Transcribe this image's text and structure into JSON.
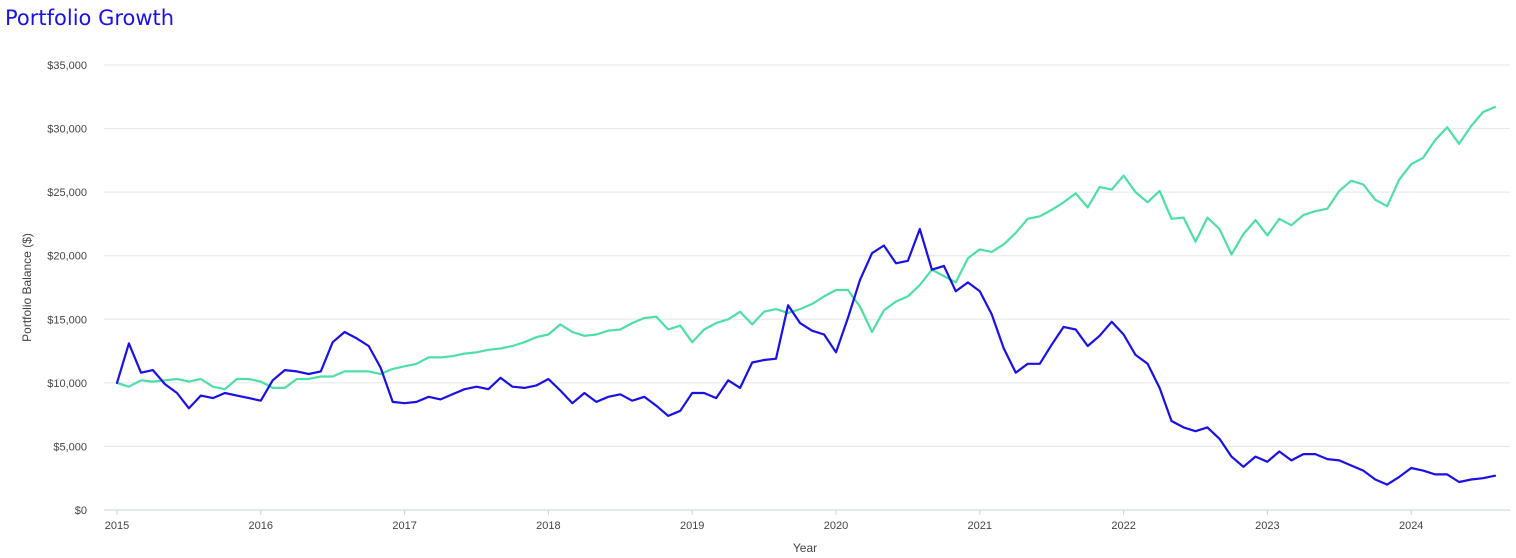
{
  "title": "Portfolio Growth",
  "chart_data": {
    "type": "line",
    "title": "Portfolio Growth",
    "xlabel": "Year",
    "ylabel": "Portfolio Balance ($)",
    "x_ticks": [
      "2015",
      "2016",
      "2017",
      "2018",
      "2019",
      "2020",
      "2021",
      "2022",
      "2023",
      "2024"
    ],
    "y_ticks": [
      "$0",
      "$5,000",
      "$10,000",
      "$15,000",
      "$20,000",
      "$25,000",
      "$30,000",
      "$35,000"
    ],
    "ylim": [
      0,
      35000
    ],
    "xlim": [
      2015.0,
      2024.67
    ],
    "grid": true,
    "legend": "none",
    "series": [
      {
        "color": "#1a10e8",
        "x": [
          2015.0,
          2015.083,
          2015.167,
          2015.25,
          2015.333,
          2015.417,
          2015.5,
          2015.583,
          2015.667,
          2015.75,
          2015.833,
          2015.917,
          2016.0,
          2016.083,
          2016.167,
          2016.25,
          2016.333,
          2016.417,
          2016.5,
          2016.583,
          2016.667,
          2016.75,
          2016.833,
          2016.917,
          2017.0,
          2017.083,
          2017.167,
          2017.25,
          2017.333,
          2017.417,
          2017.5,
          2017.583,
          2017.667,
          2017.75,
          2017.833,
          2017.917,
          2018.0,
          2018.083,
          2018.167,
          2018.25,
          2018.333,
          2018.417,
          2018.5,
          2018.583,
          2018.667,
          2018.75,
          2018.833,
          2018.917,
          2019.0,
          2019.083,
          2019.167,
          2019.25,
          2019.333,
          2019.417,
          2019.5,
          2019.583,
          2019.667,
          2019.75,
          2019.833,
          2019.917,
          2020.0,
          2020.083,
          2020.167,
          2020.25,
          2020.333,
          2020.417,
          2020.5,
          2020.583,
          2020.667,
          2020.75,
          2020.833,
          2020.917,
          2021.0,
          2021.083,
          2021.167,
          2021.25,
          2021.333,
          2021.417,
          2021.5,
          2021.583,
          2021.667,
          2021.75,
          2021.833,
          2021.917,
          2022.0,
          2022.083,
          2022.167,
          2022.25,
          2022.333,
          2022.417,
          2022.5,
          2022.583,
          2022.667,
          2022.75,
          2022.833,
          2022.917,
          2023.0,
          2023.083,
          2023.167,
          2023.25,
          2023.333,
          2023.417,
          2023.5,
          2023.583,
          2023.667,
          2023.75,
          2023.833,
          2023.917,
          2024.0,
          2024.083,
          2024.167,
          2024.25,
          2024.333,
          2024.417,
          2024.5,
          2024.583
        ],
        "values": [
          10000,
          13100,
          10800,
          11000,
          9900,
          9200,
          8000,
          9000,
          8800,
          9200,
          9000,
          8800,
          8600,
          10200,
          11000,
          10900,
          10700,
          10900,
          13200,
          14000,
          13500,
          12900,
          11200,
          8500,
          8400,
          8500,
          8900,
          8700,
          9100,
          9500,
          9700,
          9500,
          10400,
          9700,
          9600,
          9800,
          10300,
          9400,
          8400,
          9200,
          8500,
          8900,
          9100,
          8600,
          8900,
          8200,
          7400,
          7800,
          9200,
          9200,
          8800,
          10200,
          9600,
          11600,
          11800,
          11900,
          16100,
          14700,
          14100,
          13800,
          12400,
          15100,
          18100,
          20200,
          20800,
          19400,
          19600,
          22100,
          18900,
          19200,
          17200,
          17900,
          17200,
          15400,
          12700,
          10800,
          11500,
          11500,
          13000,
          14400,
          14200,
          12900,
          13700,
          14800,
          13800,
          12200,
          11500,
          9600,
          7000,
          6500,
          6200,
          6500,
          5600,
          4200,
          3400,
          4200,
          3800,
          4600,
          3900,
          4400,
          4400,
          4000,
          3900,
          3500,
          3100,
          2400,
          2000,
          2600,
          3300,
          3100,
          2800,
          2800,
          2200,
          2400,
          2500,
          2700
        ]
      },
      {
        "color": "#4ddfa6",
        "x": [
          2015.0,
          2015.083,
          2015.167,
          2015.25,
          2015.333,
          2015.417,
          2015.5,
          2015.583,
          2015.667,
          2015.75,
          2015.833,
          2015.917,
          2016.0,
          2016.083,
          2016.167,
          2016.25,
          2016.333,
          2016.417,
          2016.5,
          2016.583,
          2016.667,
          2016.75,
          2016.833,
          2016.917,
          2017.0,
          2017.083,
          2017.167,
          2017.25,
          2017.333,
          2017.417,
          2017.5,
          2017.583,
          2017.667,
          2017.75,
          2017.833,
          2017.917,
          2018.0,
          2018.083,
          2018.167,
          2018.25,
          2018.333,
          2018.417,
          2018.5,
          2018.583,
          2018.667,
          2018.75,
          2018.833,
          2018.917,
          2019.0,
          2019.083,
          2019.167,
          2019.25,
          2019.333,
          2019.417,
          2019.5,
          2019.583,
          2019.667,
          2019.75,
          2019.833,
          2019.917,
          2020.0,
          2020.083,
          2020.167,
          2020.25,
          2020.333,
          2020.417,
          2020.5,
          2020.583,
          2020.667,
          2020.75,
          2020.833,
          2020.917,
          2021.0,
          2021.083,
          2021.167,
          2021.25,
          2021.333,
          2021.417,
          2021.5,
          2021.583,
          2021.667,
          2021.75,
          2021.833,
          2021.917,
          2022.0,
          2022.083,
          2022.167,
          2022.25,
          2022.333,
          2022.417,
          2022.5,
          2022.583,
          2022.667,
          2022.75,
          2022.833,
          2022.917,
          2023.0,
          2023.083,
          2023.167,
          2023.25,
          2023.333,
          2023.417,
          2023.5,
          2023.583,
          2023.667,
          2023.75,
          2023.833,
          2023.917,
          2024.0,
          2024.083,
          2024.167,
          2024.25,
          2024.333,
          2024.417,
          2024.5,
          2024.583
        ],
        "values": [
          10000,
          9700,
          10200,
          10100,
          10200,
          10300,
          10100,
          10300,
          9700,
          9500,
          10300,
          10300,
          10100,
          9600,
          9600,
          10300,
          10300,
          10500,
          10500,
          10900,
          10900,
          10900,
          10700,
          11100,
          11300,
          11500,
          12000,
          12000,
          12100,
          12300,
          12400,
          12600,
          12700,
          12900,
          13200,
          13600,
          13800,
          14600,
          14000,
          13700,
          13800,
          14100,
          14200,
          14700,
          15100,
          15200,
          14200,
          14500,
          13200,
          14200,
          14700,
          15000,
          15600,
          14600,
          15600,
          15800,
          15500,
          15800,
          16200,
          16800,
          17300,
          17300,
          16000,
          14000,
          15700,
          16400,
          16800,
          17700,
          18900,
          18400,
          17900,
          19800,
          20500,
          20300,
          20900,
          21800,
          22900,
          23100,
          23600,
          24200,
          24900,
          23800,
          25400,
          25200,
          26300,
          25000,
          24200,
          25100,
          22900,
          23000,
          21100,
          23000,
          22100,
          20100,
          21700,
          22800,
          21600,
          22900,
          22400,
          23200,
          23500,
          23700,
          25100,
          25900,
          25600,
          24400,
          23900,
          26000,
          27200,
          27700,
          29100,
          30100,
          28800,
          30200,
          31300,
          31700
        ]
      }
    ]
  }
}
